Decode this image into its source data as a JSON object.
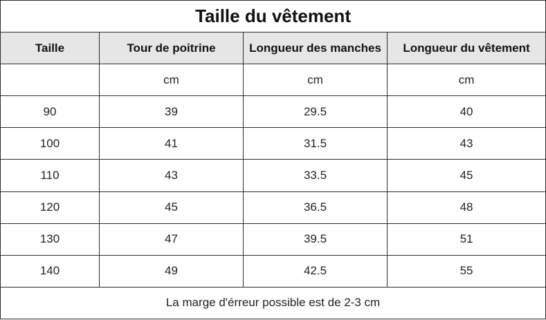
{
  "title": "Taille du vêtement",
  "columns": [
    "Taille",
    "Tour de poitrine",
    "Longueur des manches",
    "Longueur du vêtement"
  ],
  "units": [
    "",
    "cm",
    "cm",
    "cm"
  ],
  "rows": [
    [
      "90",
      "39",
      "29.5",
      "40"
    ],
    [
      "100",
      "41",
      "31.5",
      "43"
    ],
    [
      "110",
      "43",
      "33.5",
      "45"
    ],
    [
      "120",
      "45",
      "36.5",
      "48"
    ],
    [
      "130",
      "47",
      "39.5",
      "51"
    ],
    [
      "140",
      "49",
      "42.5",
      "55"
    ]
  ],
  "footer": "La marge d'érreur possible est de 2-3 cm",
  "colors": {
    "header_bg": "#e6e6e6",
    "border": "#2b2b2b"
  }
}
